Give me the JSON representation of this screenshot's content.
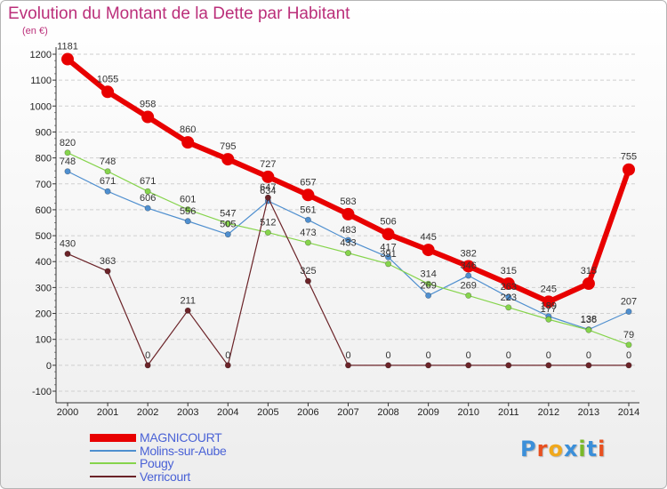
{
  "header": {
    "title": "Evolution du Montant de la Dette par Habitant",
    "unit": "(en €)"
  },
  "logo": {
    "text": "Proxiti",
    "letter_colors": [
      "#3b8fd9",
      "#e8501f",
      "#f0a81c",
      "#3b8fd9",
      "#7ab929",
      "#3b8fd9",
      "#e8501f"
    ]
  },
  "colors": {
    "title": "#bb2f7a",
    "legend_text": "#4a62d6",
    "grid": "#cfcfcf",
    "axis": "#000000"
  },
  "chart_data": {
    "type": "line",
    "title": "Evolution du Montant de la Dette par Habitant",
    "ylabel": "(en €)",
    "xlabel": "",
    "ylim": [
      -100,
      1200
    ],
    "yticks": [
      -100,
      0,
      100,
      200,
      300,
      400,
      500,
      600,
      700,
      800,
      900,
      1000,
      1100,
      1200
    ],
    "grid": "horizontal dashed",
    "legend_position": "bottom-left",
    "categories": [
      "2000",
      "2001",
      "2002",
      "2003",
      "2004",
      "2005",
      "2006",
      "2007",
      "2008",
      "2009",
      "2010",
      "2011",
      "2012",
      "2013",
      "2014"
    ],
    "series": [
      {
        "name": "MAGNICOURT",
        "color": "#e80000",
        "values": [
          1181,
          1055,
          958,
          860,
          795,
          727,
          657,
          583,
          506,
          445,
          382,
          315,
          245,
          315,
          755
        ]
      },
      {
        "name": "Molins-sur-Aube",
        "color": "#4f8fcf",
        "values": [
          748,
          671,
          606,
          556,
          505,
          634,
          561,
          483,
          417,
          269,
          346,
          263,
          189,
          138,
          207
        ]
      },
      {
        "name": "Pougy",
        "color": "#86d44c",
        "values": [
          820,
          748,
          671,
          601,
          547,
          512,
          473,
          433,
          391,
          314,
          269,
          223,
          177,
          136,
          79
        ]
      },
      {
        "name": "Verricourt",
        "color": "#6b2328",
        "values": [
          430,
          363,
          0,
          211,
          0,
          647,
          325,
          0,
          0,
          0,
          0,
          0,
          0,
          0,
          0
        ]
      }
    ]
  }
}
